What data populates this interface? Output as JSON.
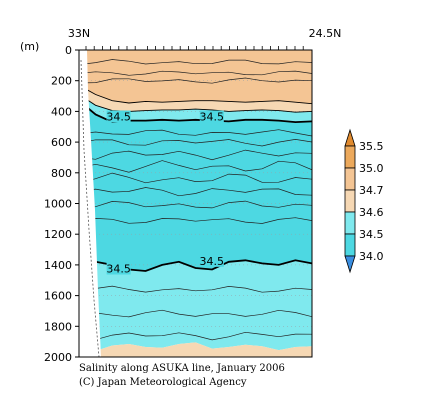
{
  "chart_data": {
    "type": "heatmap",
    "title": "Salinity along ASUKA line, January 2006",
    "credit": "(C) Japan Meteorological Agency",
    "x_left_label": "33N",
    "x_right_label": "24.5N",
    "ylabel": "(m)",
    "ylim": [
      0,
      2000
    ],
    "y_inverted": true,
    "y_ticks": [
      0,
      200,
      400,
      600,
      800,
      1000,
      1200,
      1400,
      1600,
      1800,
      2000
    ],
    "colorbar": {
      "bounds": [
        "35.5",
        "35.0",
        "34.7",
        "34.6",
        "34.5",
        "34.0"
      ],
      "bands": [
        {
          "range": "> 35.5",
          "color": "#e08a2e"
        },
        {
          "range": "35.0 - 35.5",
          "color": "#eca95c"
        },
        {
          "range": "34.7 - 35.0",
          "color": "#f4c594"
        },
        {
          "range": "34.6 - 34.7",
          "color": "#f6d8b4"
        },
        {
          "range": "34.5 - 34.6",
          "color": "#7fe9ee"
        },
        {
          "range": "34.0 - 34.5",
          "color": "#4dd8e2"
        },
        {
          "range": "< 34.0",
          "color": "#3a8ee0"
        }
      ]
    },
    "contour_labels": [
      {
        "text": "34.5",
        "x": 0.17,
        "depth": 440
      },
      {
        "text": "34.5",
        "x": 0.57,
        "depth": 440
      },
      {
        "text": "34.5",
        "x": 0.17,
        "depth": 1430
      },
      {
        "text": "34.5",
        "x": 0.57,
        "depth": 1380
      }
    ],
    "isohalines": [
      {
        "value": 34.7,
        "depths": [
          230,
          290,
          330,
          345,
          335,
          340,
          335,
          330,
          330,
          335,
          340,
          335,
          330,
          340,
          350
        ]
      },
      {
        "value": 34.6,
        "depths": [
          290,
          360,
          395,
          400,
          395,
          390,
          390,
          385,
          390,
          400,
          395,
          390,
          395,
          405,
          400
        ]
      },
      {
        "value": 34.5,
        "depths": [
          330,
          420,
          470,
          460,
          460,
          455,
          460,
          455,
          460,
          465,
          455,
          455,
          460,
          470,
          465
        ]
      },
      {
        "value": 34.5,
        "depths": [
          1350,
          1380,
          1400,
          1430,
          1440,
          1400,
          1380,
          1420,
          1430,
          1380,
          1370,
          1390,
          1400,
          1370,
          1390
        ]
      }
    ]
  }
}
